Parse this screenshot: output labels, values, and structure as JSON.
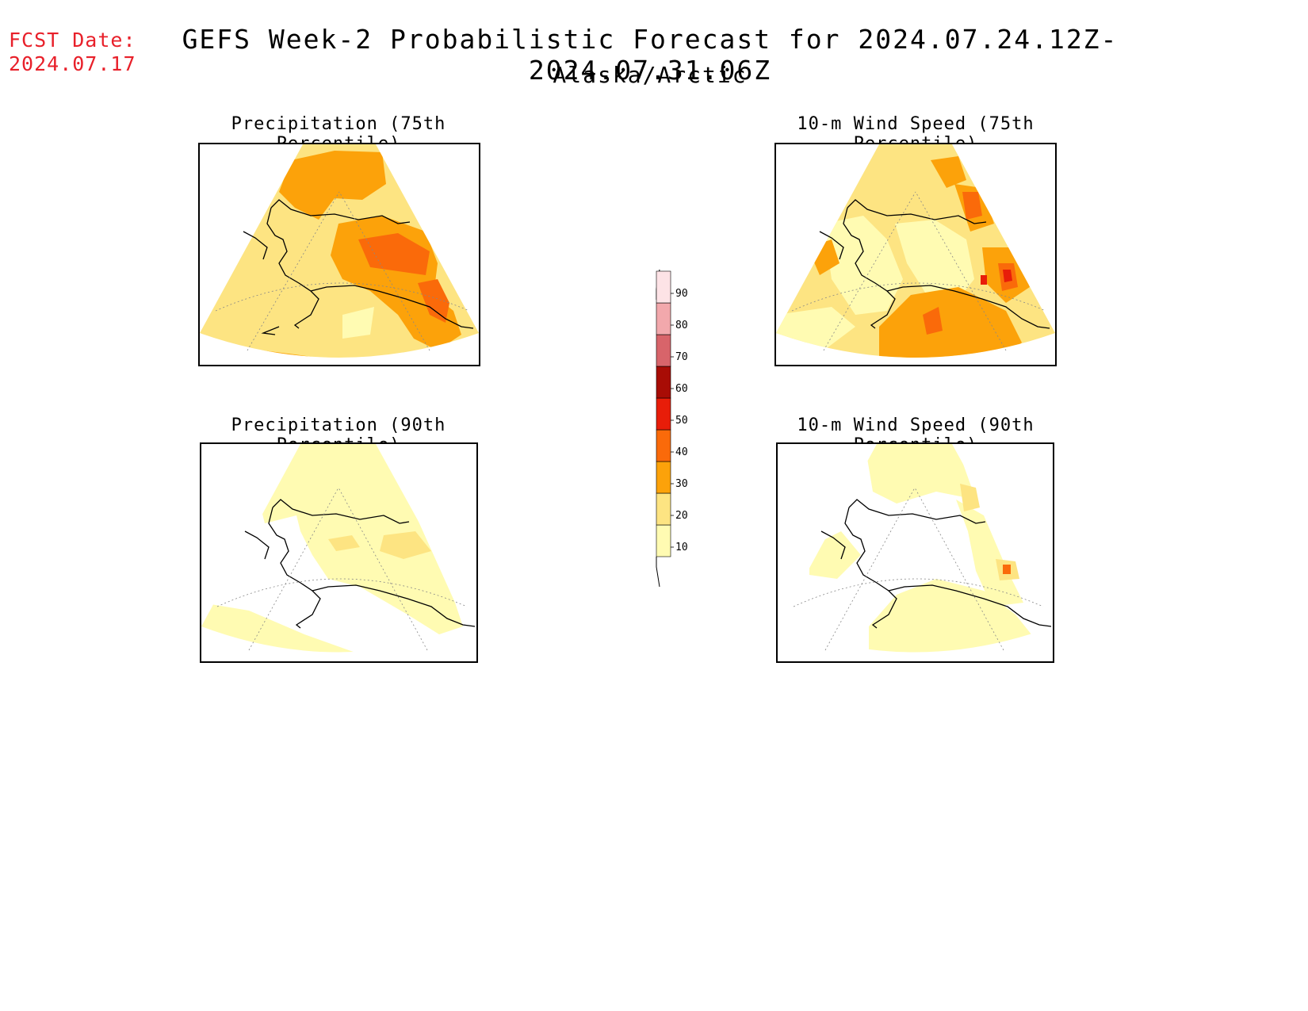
{
  "header": {
    "fcst_label": "FCST Date:",
    "fcst_date": "2024.07.17",
    "title": "GEFS Week-2 Probabilistic Forecast for 2024.07.24.12Z-2024.07.31.06Z",
    "subtitle": "Alaska/Arctic"
  },
  "panels": [
    {
      "id": "precip75",
      "title": "Precipitation (75th Percentile)"
    },
    {
      "id": "wind75",
      "title": "10-m Wind Speed (75th Percentile)"
    },
    {
      "id": "precip90",
      "title": "Precipitation (90th Percentile)"
    },
    {
      "id": "wind90",
      "title": "10-m Wind Speed (90th Percentile)"
    }
  ],
  "colorbar": {
    "levels": [
      "10",
      "20",
      "30",
      "40",
      "50",
      "60",
      "70",
      "80",
      "90"
    ],
    "colors": {
      "c10": "#fffbb2",
      "c20": "#fde482",
      "c30": "#fca20a",
      "c40": "#fa6a0a",
      "c50": "#e81d09",
      "c60": "#a80c05",
      "c70": "#d8646a",
      "c80": "#f2a8ac",
      "c90": "#fde3e6"
    }
  }
}
